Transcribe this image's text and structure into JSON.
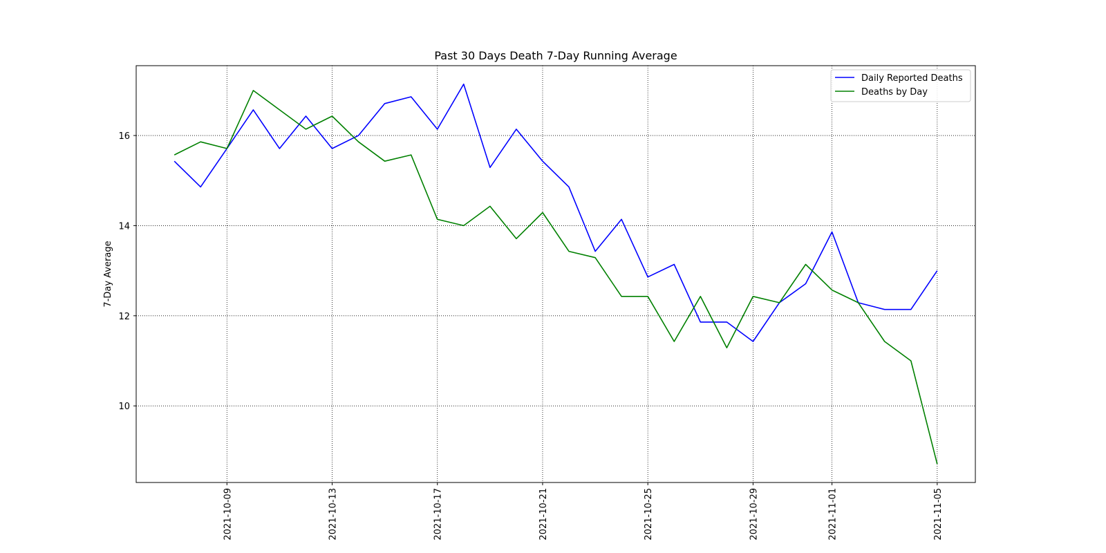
{
  "chart_data": {
    "type": "line",
    "title": "Past 30 Days Death 7-Day Running Average",
    "xlabel": "",
    "ylabel": "7-Day Average",
    "x": [
      "2021-10-07",
      "2021-10-08",
      "2021-10-09",
      "2021-10-10",
      "2021-10-11",
      "2021-10-12",
      "2021-10-13",
      "2021-10-14",
      "2021-10-15",
      "2021-10-16",
      "2021-10-17",
      "2021-10-18",
      "2021-10-19",
      "2021-10-20",
      "2021-10-21",
      "2021-10-22",
      "2021-10-23",
      "2021-10-24",
      "2021-10-25",
      "2021-10-26",
      "2021-10-27",
      "2021-10-28",
      "2021-10-29",
      "2021-10-30",
      "2021-10-31",
      "2021-11-01",
      "2021-11-02",
      "2021-11-03",
      "2021-11-04",
      "2021-11-05"
    ],
    "x_ticks": [
      "2021-10-09",
      "2021-10-13",
      "2021-10-17",
      "2021-10-21",
      "2021-10-25",
      "2021-10-29",
      "2021-11-01",
      "2021-11-05"
    ],
    "y_ticks": [
      10,
      12,
      14,
      16
    ],
    "ylim": [
      8.3,
      17.55
    ],
    "grid": true,
    "grid_style": "dotted",
    "legend_position": "top-right",
    "series": [
      {
        "name": "Daily Reported Deaths",
        "color": "#0000ff",
        "values": [
          15.43,
          14.86,
          15.71,
          16.57,
          15.71,
          16.43,
          15.71,
          16.0,
          16.71,
          16.86,
          16.14,
          17.14,
          15.29,
          16.14,
          15.43,
          14.86,
          13.43,
          14.14,
          12.86,
          13.14,
          11.86,
          11.86,
          11.43,
          12.29,
          12.71,
          13.86,
          12.29,
          12.14,
          12.14,
          13.0
        ]
      },
      {
        "name": "Deaths by Day",
        "color": "#008000",
        "values": [
          15.57,
          15.86,
          15.71,
          17.0,
          16.57,
          16.14,
          16.43,
          15.86,
          15.43,
          15.57,
          14.14,
          14.0,
          14.43,
          13.71,
          14.29,
          13.43,
          13.29,
          12.43,
          12.43,
          11.43,
          12.43,
          11.29,
          12.43,
          12.29,
          13.14,
          12.57,
          12.29,
          11.43,
          11.0,
          8.71
        ]
      }
    ]
  }
}
